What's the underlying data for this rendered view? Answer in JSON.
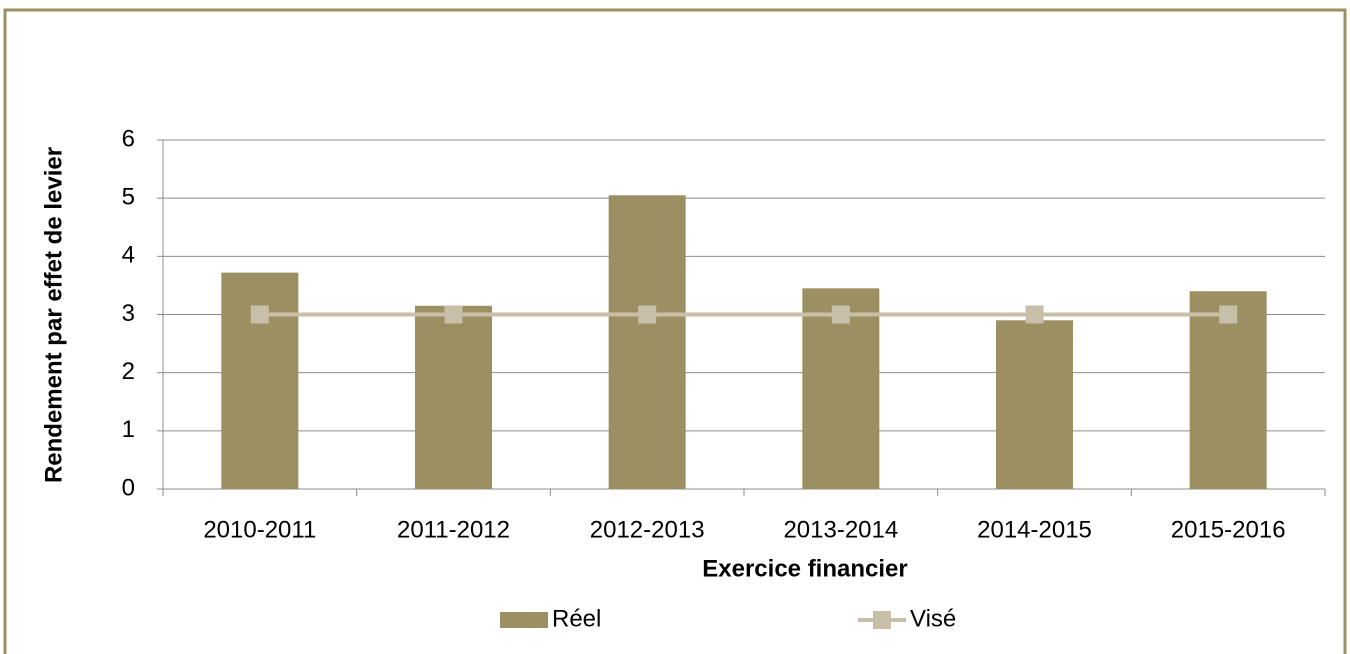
{
  "chart_data": {
    "type": "bar",
    "y_label": "Rendement par effet de levier",
    "x_label": "Exercice financier",
    "categories": [
      "2010-2011",
      "2011-2012",
      "2012-2013",
      "2013-2014",
      "2014-2015",
      "2015-2016"
    ],
    "series": [
      {
        "name": "Réel",
        "color": "#9c8f62",
        "type": "bar",
        "values": [
          3.72,
          3.15,
          5.05,
          3.45,
          2.9,
          3.4
        ]
      },
      {
        "name": "Visé",
        "color": "#c8bfa9",
        "type": "line",
        "values": [
          3,
          3,
          3,
          3,
          3,
          3
        ]
      }
    ],
    "ylim": [
      0,
      6
    ],
    "yticks": [
      0,
      1,
      2,
      3,
      4,
      5,
      6
    ],
    "grid": true
  }
}
